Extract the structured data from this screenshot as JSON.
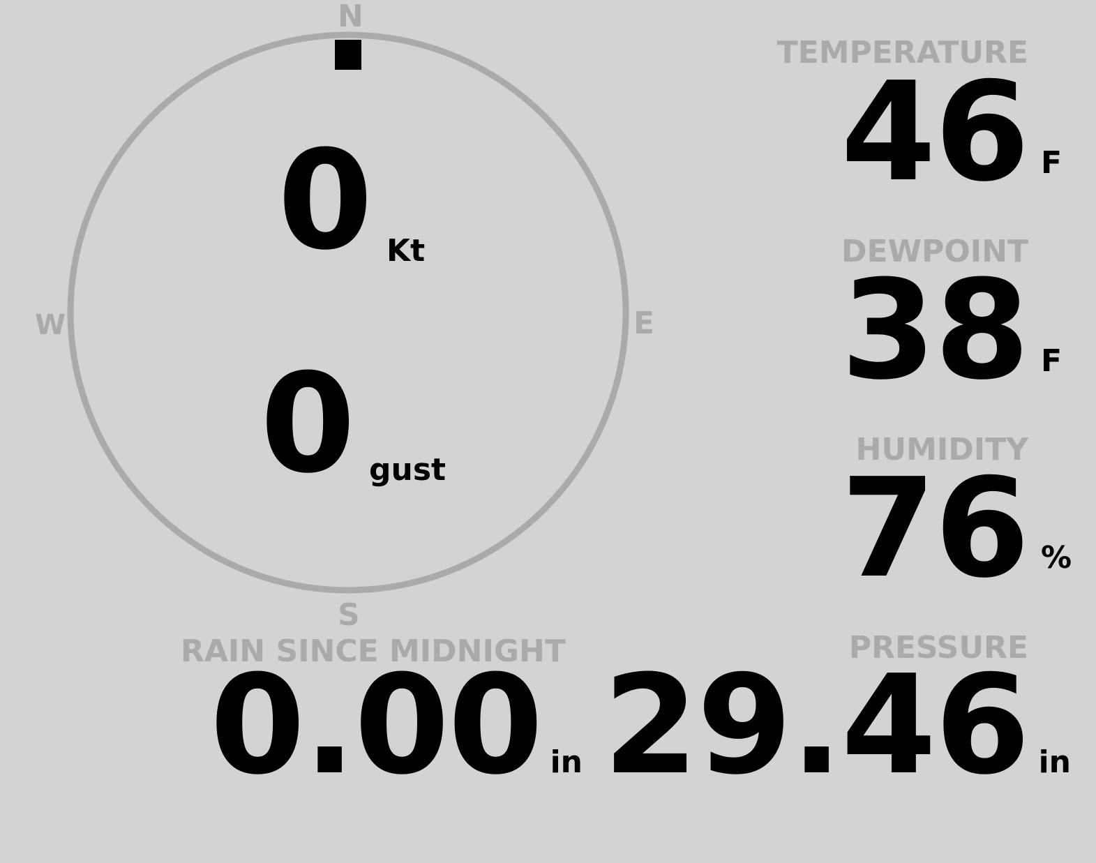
{
  "compass": {
    "north": "N",
    "south": "S",
    "east": "E",
    "west": "W",
    "wind_direction_deg": 0,
    "ring_color": "#aaaaaa",
    "wind_speed": "0",
    "wind_speed_unit": "Kt",
    "gust": "0",
    "gust_unit": "gust"
  },
  "rain": {
    "label": "RAIN SINCE MIDNIGHT",
    "value": "0.00",
    "unit": "in"
  },
  "temperature": {
    "label": "TEMPERATURE",
    "value": "46",
    "unit": "F"
  },
  "dewpoint": {
    "label": "DEWPOINT",
    "value": "38",
    "unit": "F"
  },
  "humidity": {
    "label": "HUMIDITY",
    "value": "76",
    "unit": "%"
  },
  "pressure": {
    "label": "PRESSURE",
    "value": "29.46",
    "unit": "in"
  },
  "colors": {
    "background": "#d3d3d3",
    "label": "#aaaaaa",
    "value": "#000000"
  }
}
